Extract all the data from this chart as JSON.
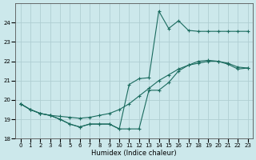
{
  "xlabel": "Humidex (Indice chaleur)",
  "background_color": "#cce8eb",
  "grid_color": "#b0ced2",
  "line_color": "#1a6b5e",
  "xlim": [
    -0.5,
    23.5
  ],
  "ylim": [
    18,
    25
  ],
  "yticks": [
    18,
    19,
    20,
    21,
    22,
    23,
    24
  ],
  "xticks": [
    0,
    1,
    2,
    3,
    4,
    5,
    6,
    7,
    8,
    9,
    10,
    11,
    12,
    13,
    14,
    15,
    16,
    17,
    18,
    19,
    20,
    21,
    22,
    23
  ],
  "line1_x": [
    0,
    1,
    2,
    3,
    4,
    5,
    6,
    7,
    8,
    9,
    10,
    11,
    12,
    13,
    14,
    15,
    16,
    17,
    18,
    19,
    20,
    21,
    22,
    23
  ],
  "line1_y": [
    19.8,
    19.5,
    19.3,
    19.2,
    19.15,
    19.1,
    19.05,
    19.1,
    19.2,
    19.3,
    19.5,
    19.8,
    20.2,
    20.6,
    21.0,
    21.3,
    21.6,
    21.8,
    21.9,
    22.0,
    22.0,
    21.9,
    21.7,
    21.65
  ],
  "line2_x": [
    0,
    1,
    2,
    3,
    4,
    5,
    6,
    7,
    8,
    9,
    10,
    11,
    12,
    13,
    14,
    15,
    16,
    17,
    18,
    19,
    20,
    21,
    22,
    23
  ],
  "line2_y": [
    19.8,
    19.5,
    19.3,
    19.2,
    19.0,
    18.75,
    18.6,
    18.75,
    18.75,
    18.75,
    18.5,
    20.8,
    21.1,
    21.15,
    24.6,
    23.7,
    24.1,
    23.6,
    23.55,
    23.55,
    23.55,
    23.55,
    23.55,
    23.55
  ],
  "line3_x": [
    0,
    1,
    2,
    3,
    4,
    5,
    6,
    7,
    8,
    9,
    10,
    11,
    12,
    13,
    14,
    15,
    16,
    17,
    18,
    19,
    20,
    21,
    22,
    23
  ],
  "line3_y": [
    19.8,
    19.5,
    19.3,
    19.2,
    19.0,
    18.75,
    18.6,
    18.75,
    18.75,
    18.75,
    18.5,
    18.5,
    18.5,
    20.5,
    20.5,
    20.9,
    21.5,
    21.8,
    22.0,
    22.05,
    22.0,
    21.85,
    21.6,
    21.65
  ]
}
